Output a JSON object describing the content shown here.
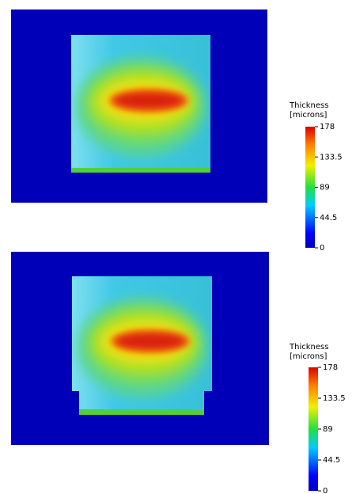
{
  "chart_data": [
    {
      "type": "heatmap",
      "colormap": "jet",
      "colorbar": {
        "title": [
          "Thickness",
          "[microns]"
        ],
        "lim": [
          0,
          178
        ],
        "ticks": [
          0,
          44.5,
          89,
          133.5,
          178
        ]
      }
    },
    {
      "type": "heatmap",
      "colormap": "jet",
      "colorbar": {
        "title": [
          "Thickness",
          "[microns]"
        ],
        "lim": [
          0,
          178
        ],
        "ticks": [
          0,
          44.5,
          89,
          133.5,
          178
        ]
      }
    }
  ]
}
